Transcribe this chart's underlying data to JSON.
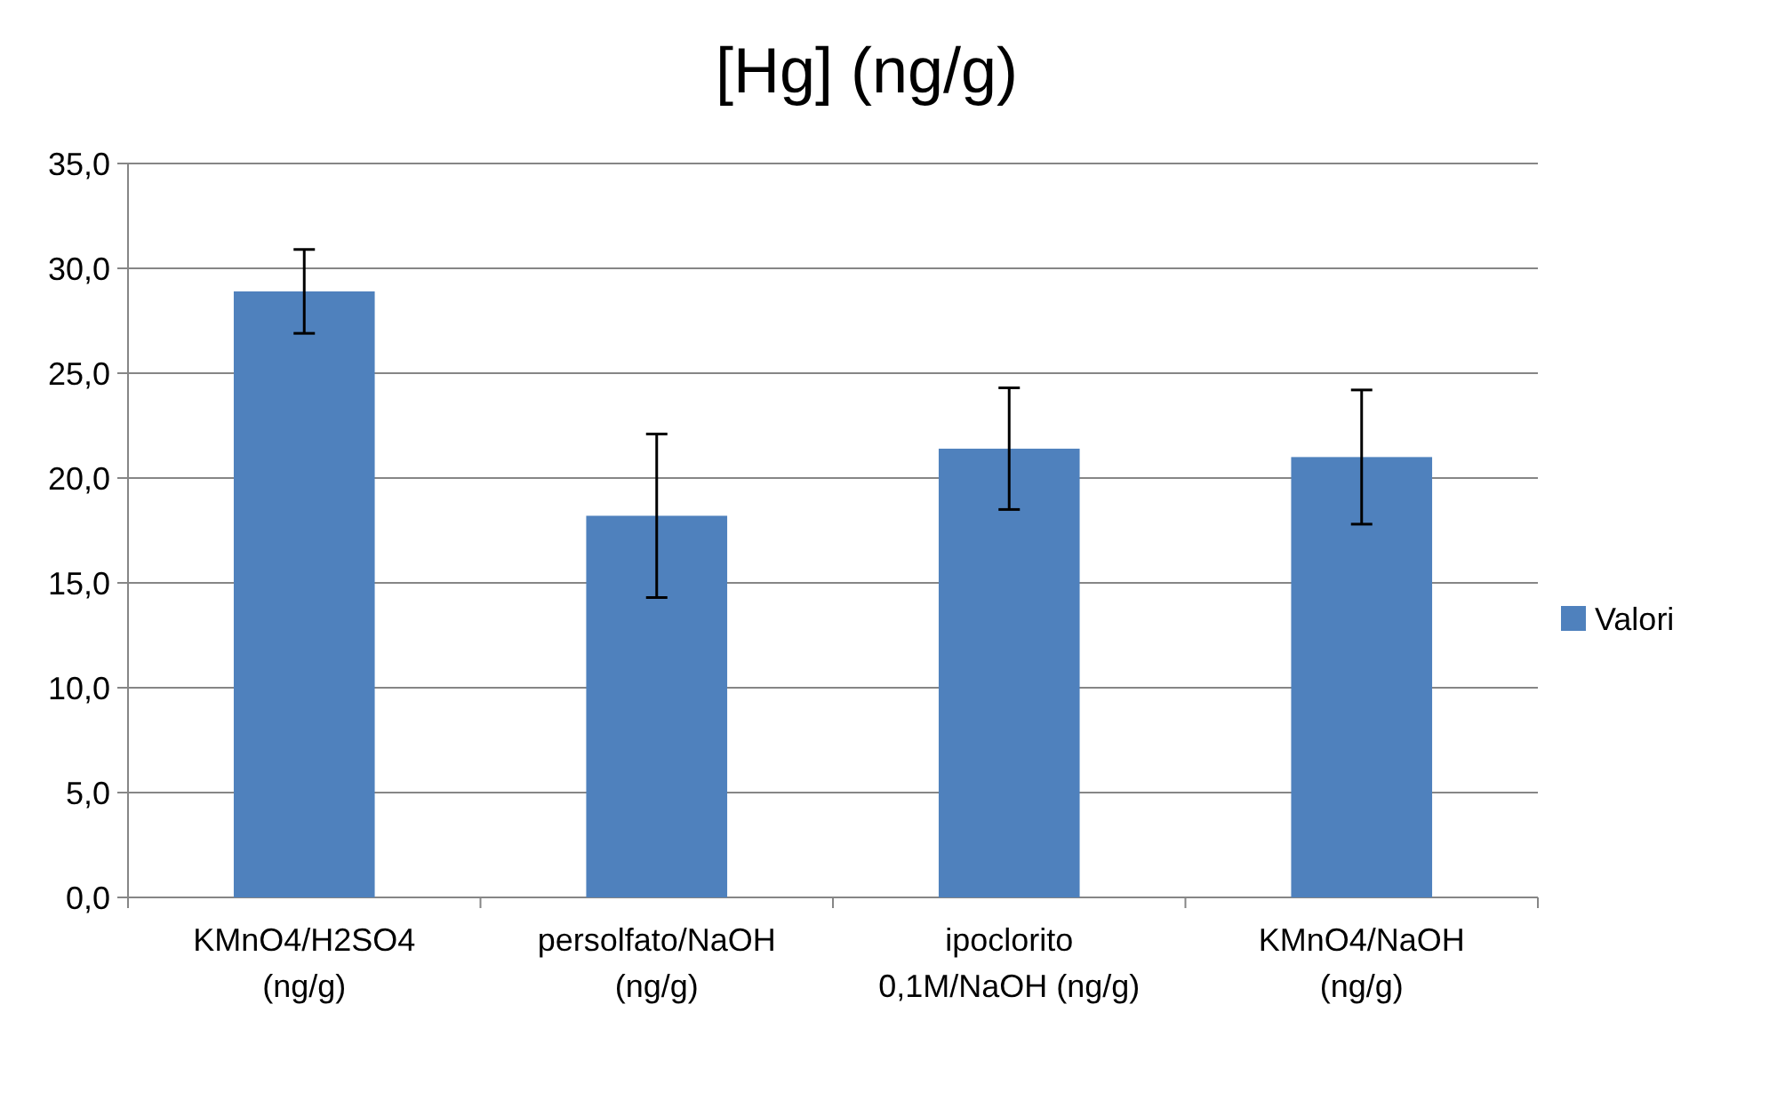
{
  "chart_data": {
    "type": "bar",
    "title": "[Hg] (ng/g)",
    "categories": [
      "KMnO4/H2SO4 (ng/g)",
      "persolfato/NaOH (ng/g)",
      "ipoclorito 0,1M/NaOH (ng/g)",
      "KMnO4/NaOH (ng/g)"
    ],
    "series": [
      {
        "name": "Valori",
        "color": "#4f81bd",
        "values": [
          28.9,
          18.2,
          21.4,
          21.0
        ],
        "errors": [
          2.0,
          3.9,
          2.9,
          3.2
        ]
      }
    ],
    "ylim": [
      0,
      35
    ],
    "yticks": [
      {
        "value": 0,
        "label": "0,0"
      },
      {
        "value": 5,
        "label": "5,0"
      },
      {
        "value": 10,
        "label": "10,0"
      },
      {
        "value": 15,
        "label": "15,0"
      },
      {
        "value": 20,
        "label": "20,0"
      },
      {
        "value": 25,
        "label": "25,0"
      },
      {
        "value": 30,
        "label": "30,0"
      },
      {
        "value": 35,
        "label": "35,0"
      }
    ],
    "grid": "y",
    "legend": "right"
  }
}
